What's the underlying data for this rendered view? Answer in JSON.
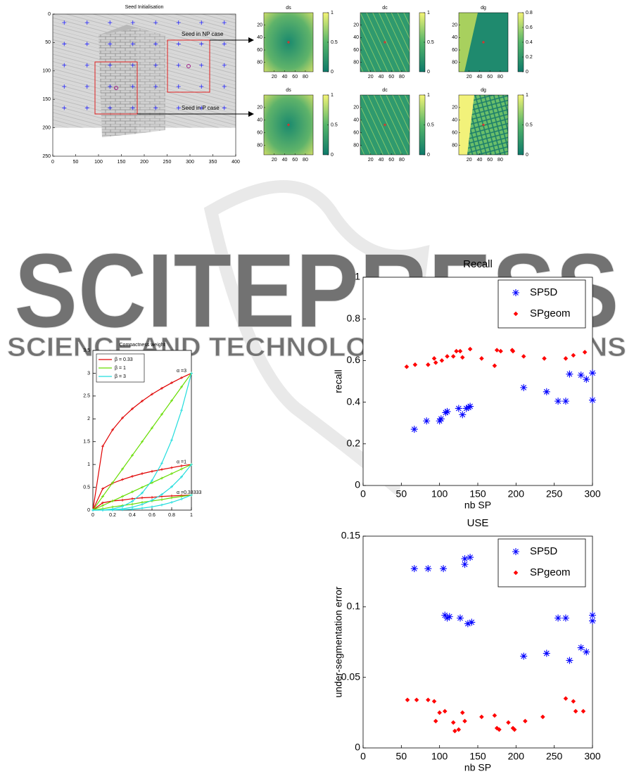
{
  "watermark": {
    "title": "SCITEPRESS",
    "subtitle": "SCIENCE AND TECHNOLOGY PUBLICATIONS"
  },
  "figure1": {
    "title": "Seed Initialisation",
    "xlim": [
      0,
      400
    ],
    "ylim": [
      0,
      250
    ],
    "xticks": [
      0,
      50,
      100,
      150,
      200,
      250,
      300,
      350,
      400
    ],
    "yticks": [
      0,
      50,
      100,
      150,
      200,
      250
    ],
    "annotations": [
      "Seed in NP case",
      "Seed in P case"
    ],
    "panels": [
      {
        "title": "ds",
        "xlim": [
          0,
          95
        ],
        "ylim": [
          0,
          95
        ],
        "xticks": [
          20,
          40,
          60,
          80
        ],
        "yticks": [
          20,
          40,
          60,
          80
        ],
        "cblim": [
          0,
          1
        ],
        "cbticks": [
          0,
          0.5,
          1
        ]
      },
      {
        "title": "dc",
        "xlim": [
          0,
          95
        ],
        "ylim": [
          0,
          95
        ],
        "xticks": [
          20,
          40,
          60,
          80
        ],
        "yticks": [
          20,
          40,
          60,
          80
        ],
        "cblim": [
          0,
          1
        ],
        "cbticks": [
          0,
          0.5,
          1
        ]
      },
      {
        "title": "dg",
        "xlim": [
          0,
          95
        ],
        "ylim": [
          0,
          95
        ],
        "xticks": [
          20,
          40,
          60,
          80
        ],
        "yticks": [
          20,
          40,
          60,
          80
        ],
        "cblim": [
          0,
          0.8
        ],
        "cbticks": [
          0,
          0.2,
          0.4,
          0.6,
          0.8
        ]
      },
      {
        "title": "ds",
        "xlim": [
          0,
          95
        ],
        "ylim": [
          0,
          95
        ],
        "xticks": [
          20,
          40,
          60,
          80
        ],
        "yticks": [
          20,
          40,
          60,
          80
        ],
        "cblim": [
          0,
          1
        ],
        "cbticks": [
          0,
          0.5,
          1
        ]
      },
      {
        "title": "dc",
        "xlim": [
          0,
          95
        ],
        "ylim": [
          0,
          95
        ],
        "xticks": [
          20,
          40,
          60,
          80
        ],
        "yticks": [
          20,
          40,
          60,
          80
        ],
        "cblim": [
          0,
          1
        ],
        "cbticks": [
          0,
          0.5,
          1
        ]
      },
      {
        "title": "dg",
        "xlim": [
          0,
          95
        ],
        "ylim": [
          0,
          95
        ],
        "xticks": [
          20,
          40,
          60,
          80
        ],
        "yticks": [
          20,
          40,
          60,
          80
        ],
        "cblim": [
          0,
          1
        ],
        "cbticks": [
          0,
          0.5,
          1
        ]
      }
    ]
  },
  "chart_data": [
    {
      "type": "scatter",
      "title": "Recall",
      "xlabel": "nb SP",
      "ylabel": "recall",
      "xlim": [
        0,
        300
      ],
      "ylim": [
        0,
        1
      ],
      "xticks": [
        0,
        50,
        100,
        150,
        200,
        250,
        300
      ],
      "yticks": [
        0,
        0.2,
        0.4,
        0.6,
        0.8,
        1
      ],
      "series": [
        {
          "name": "SP5D",
          "color": "#0000ff",
          "marker": "asterisk",
          "x": [
            67,
            83,
            100,
            102,
            108,
            110,
            125,
            130,
            135,
            138,
            140,
            210,
            240,
            255,
            265,
            270,
            285,
            292,
            300,
            300
          ],
          "values": [
            0.27,
            0.31,
            0.31,
            0.32,
            0.35,
            0.355,
            0.37,
            0.34,
            0.37,
            0.375,
            0.38,
            0.47,
            0.45,
            0.405,
            0.405,
            0.535,
            0.53,
            0.51,
            0.54,
            0.41
          ]
        },
        {
          "name": "SPgeom",
          "color": "#ff0000",
          "marker": "dot",
          "x": [
            57,
            68,
            85,
            93,
            95,
            103,
            110,
            118,
            122,
            127,
            130,
            140,
            155,
            172,
            175,
            180,
            195,
            196,
            210,
            237,
            265,
            275,
            290
          ],
          "values": [
            0.57,
            0.58,
            0.58,
            0.61,
            0.59,
            0.6,
            0.62,
            0.62,
            0.645,
            0.645,
            0.615,
            0.655,
            0.61,
            0.575,
            0.65,
            0.645,
            0.65,
            0.645,
            0.62,
            0.61,
            0.61,
            0.625,
            0.64
          ]
        }
      ]
    },
    {
      "type": "scatter",
      "title": "USE",
      "xlabel": "nb SP",
      "ylabel": "under-segmentation error",
      "xlim": [
        0,
        300
      ],
      "ylim": [
        0,
        0.15
      ],
      "xticks": [
        0,
        50,
        100,
        150,
        200,
        250,
        300
      ],
      "yticks": [
        0,
        0.05,
        0.1,
        0.15
      ],
      "series": [
        {
          "name": "SP5D",
          "color": "#0000ff",
          "marker": "asterisk",
          "x": [
            67,
            85,
            105,
            107,
            110,
            113,
            127,
            133,
            133,
            137,
            140,
            142,
            210,
            240,
            255,
            265,
            270,
            285,
            292,
            300,
            300
          ],
          "values": [
            0.127,
            0.127,
            0.127,
            0.094,
            0.092,
            0.093,
            0.092,
            0.134,
            0.13,
            0.088,
            0.135,
            0.089,
            0.065,
            0.067,
            0.092,
            0.092,
            0.062,
            0.071,
            0.068,
            0.094,
            0.09
          ]
        },
        {
          "name": "SPgeom",
          "color": "#ff0000",
          "marker": "dot",
          "x": [
            58,
            70,
            85,
            93,
            95,
            100,
            107,
            118,
            120,
            125,
            130,
            133,
            155,
            172,
            175,
            178,
            190,
            196,
            198,
            212,
            235,
            265,
            275,
            278,
            288
          ],
          "values": [
            0.034,
            0.034,
            0.034,
            0.033,
            0.019,
            0.025,
            0.026,
            0.018,
            0.012,
            0.013,
            0.025,
            0.019,
            0.022,
            0.023,
            0.014,
            0.013,
            0.018,
            0.014,
            0.013,
            0.019,
            0.022,
            0.035,
            0.033,
            0.026,
            0.026
          ]
        }
      ]
    },
    {
      "type": "line",
      "title": "Compactness weight",
      "xlim": [
        0,
        1
      ],
      "ylim": [
        0,
        3.5
      ],
      "xticks": [
        0,
        0.2,
        0.4,
        0.6,
        0.8,
        1
      ],
      "yticks": [
        0,
        0.5,
        1,
        1.5,
        2,
        2.5,
        3,
        3.5
      ],
      "x": [
        0,
        0.1,
        0.2,
        0.3,
        0.4,
        0.5,
        0.6,
        0.7,
        0.8,
        0.9,
        1
      ],
      "annotations": [
        {
          "text": "α =3",
          "x": 0.85,
          "y": 3.05
        },
        {
          "text": "α =1",
          "x": 0.85,
          "y": 1.05
        },
        {
          "text": "α =0.33333",
          "x": 0.85,
          "y": 0.38
        }
      ],
      "series": [
        {
          "name": "β = 0.33",
          "color": "#e00000",
          "curves": [
            [
              0,
              1.4,
              1.76,
              2.02,
              2.22,
              2.39,
              2.54,
              2.67,
              2.79,
              2.9,
              3
            ],
            [
              0,
              0.47,
              0.59,
              0.67,
              0.74,
              0.8,
              0.85,
              0.89,
              0.93,
              0.97,
              1
            ],
            [
              0,
              0.16,
              0.2,
              0.22,
              0.25,
              0.27,
              0.28,
              0.3,
              0.31,
              0.32,
              0.33
            ]
          ]
        },
        {
          "name": "β = 1",
          "color": "#66dd00",
          "curves": [
            [
              0,
              0.3,
              0.6,
              0.9,
              1.2,
              1.5,
              1.8,
              2.1,
              2.4,
              2.7,
              3
            ],
            [
              0,
              0.1,
              0.2,
              0.3,
              0.4,
              0.5,
              0.6,
              0.7,
              0.8,
              0.9,
              1
            ],
            [
              0,
              0.03,
              0.07,
              0.1,
              0.13,
              0.17,
              0.2,
              0.23,
              0.27,
              0.3,
              0.33
            ]
          ]
        },
        {
          "name": "β = 3",
          "color": "#22dddd",
          "curves": [
            [
              0,
              0.003,
              0.024,
              0.081,
              0.192,
              0.375,
              0.648,
              1.029,
              1.536,
              2.187,
              3
            ],
            [
              0,
              0.001,
              0.008,
              0.027,
              0.064,
              0.125,
              0.216,
              0.343,
              0.512,
              0.729,
              1
            ],
            [
              0,
              0,
              0.003,
              0.009,
              0.021,
              0.042,
              0.072,
              0.114,
              0.171,
              0.243,
              0.33
            ]
          ]
        }
      ]
    }
  ]
}
